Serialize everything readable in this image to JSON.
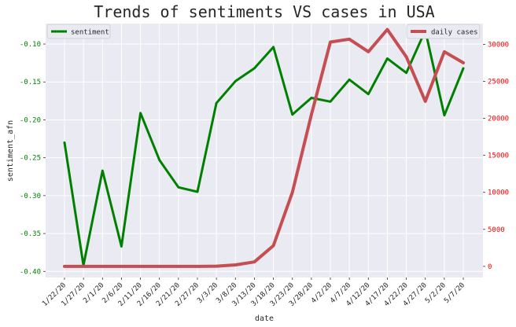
{
  "chart_data": {
    "type": "line",
    "title": "Trends of sentiments VS cases in USA",
    "xlabel": "date",
    "ylabel_left": "sentiment_afn",
    "ylabel_right": "",
    "x": [
      "1/22/20",
      "1/27/20",
      "2/1/20",
      "2/6/20",
      "2/11/20",
      "2/16/20",
      "2/21/20",
      "2/27/20",
      "3/3/20",
      "3/8/20",
      "3/13/20",
      "3/18/20",
      "3/23/20",
      "3/28/20",
      "4/2/20",
      "4/7/20",
      "4/12/20",
      "4/17/20",
      "4/22/20",
      "4/27/20",
      "5/2/20",
      "5/7/20"
    ],
    "ylim_left": [
      -0.408,
      -0.073
    ],
    "ylim_right": [
      -1500,
      32800
    ],
    "yticks_left": [
      -0.4,
      -0.35,
      -0.3,
      -0.25,
      -0.2,
      -0.15,
      -0.1
    ],
    "yticks_left_labels": [
      "-0.40",
      "-0.35",
      "-0.30",
      "-0.25",
      "-0.20",
      "-0.15",
      "-0.10"
    ],
    "yticks_right": [
      0,
      5000,
      10000,
      15000,
      20000,
      25000,
      30000
    ],
    "yticks_right_labels": [
      "0",
      "5000",
      "10000",
      "15000",
      "20000",
      "25000",
      "30000"
    ],
    "grid": true,
    "series": [
      {
        "name": "sentiment",
        "axis": "left",
        "color": "#008000",
        "values": [
          -0.23,
          -0.392,
          -0.267,
          -0.367,
          -0.191,
          -0.253,
          -0.289,
          -0.295,
          -0.178,
          -0.149,
          -0.132,
          -0.104,
          -0.193,
          -0.171,
          -0.176,
          -0.147,
          -0.166,
          -0.119,
          -0.138,
          -0.082,
          -0.194,
          -0.132
        ]
      },
      {
        "name": "daily cases",
        "axis": "right",
        "color": "#c44e52",
        "values": [
          0,
          0,
          0,
          0,
          0,
          0,
          0,
          0,
          30,
          200,
          600,
          2800,
          10000,
          20500,
          30300,
          30700,
          29000,
          32000,
          28300,
          22300,
          29000,
          27500
        ]
      }
    ],
    "legend_left": {
      "label": "sentiment",
      "placement": "upper-left"
    },
    "legend_right": {
      "label": "daily cases",
      "placement": "upper-right"
    },
    "colors": {
      "plot_background": "#eaeaf2",
      "grid": "#ffffff",
      "left_tick_text": "#008000",
      "right_tick_text": "#ff0000"
    }
  }
}
